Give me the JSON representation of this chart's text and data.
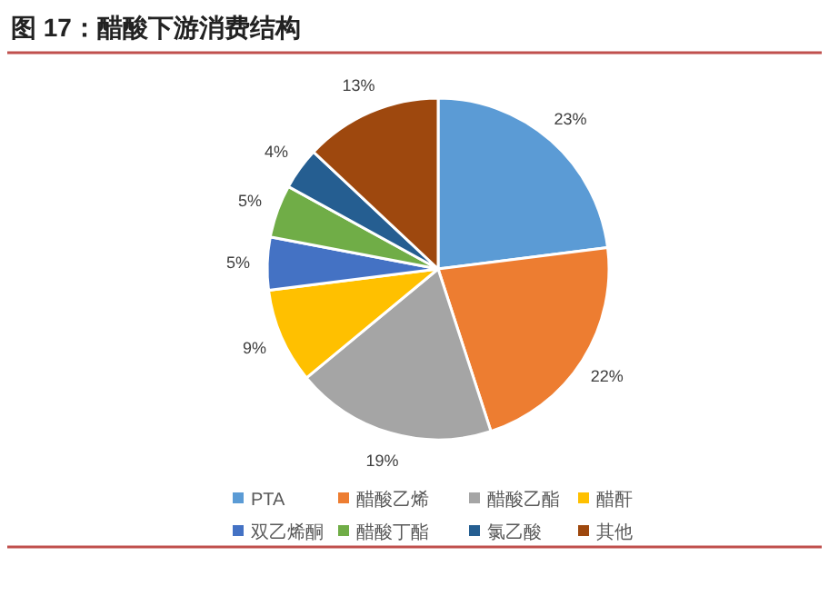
{
  "chart_data": {
    "type": "pie",
    "title": "图 17：醋酸下游消费结构",
    "categories": [
      "PTA",
      "醋酸乙烯",
      "醋酸乙酯",
      "醋酐",
      "双乙烯酮",
      "醋酸丁酯",
      "氯乙酸",
      "其他"
    ],
    "values": [
      23,
      22,
      19,
      9,
      5,
      5,
      4,
      13
    ],
    "colors": [
      "#5b9bd5",
      "#ed7d31",
      "#a5a5a5",
      "#ffc000",
      "#4472c4",
      "#70ad47",
      "#255e91",
      "#9e480e"
    ],
    "value_labels": [
      "23%",
      "22%",
      "19%",
      "9%",
      "5%",
      "5%",
      "4%",
      "13%"
    ],
    "legend": "bottom"
  }
}
